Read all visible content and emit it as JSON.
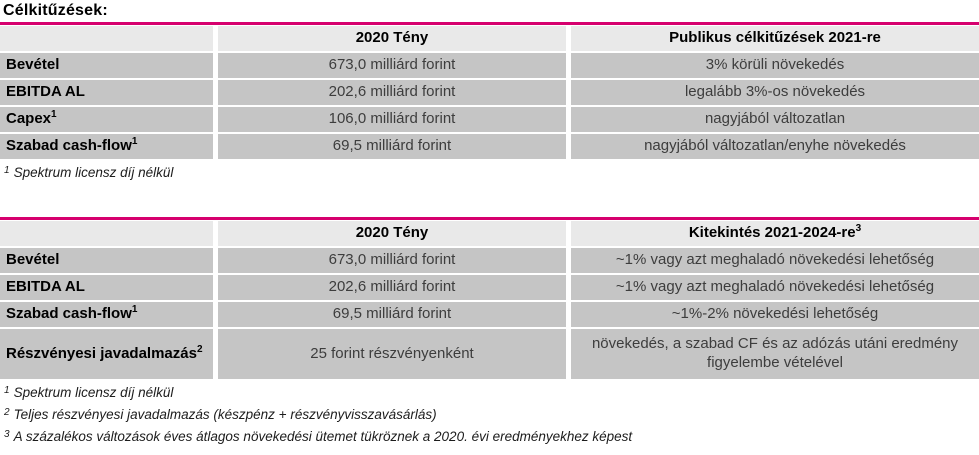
{
  "page": {
    "title": "Célkitűzések:"
  },
  "colors": {
    "accent": "#d6006e",
    "header_bg": "#e9e9e9",
    "row_bg": "#c5c5c5",
    "value_text": "#3d3d3d"
  },
  "table1": {
    "columns": {
      "label": "",
      "fact": "2020 Tény",
      "outlook": "Publikus célkitűzések 2021-re",
      "outlook_sup": ""
    },
    "rows": [
      {
        "label": "Bevétel",
        "sup": "",
        "fact": "673,0 milliárd forint",
        "outlook": "3% körüli növekedés"
      },
      {
        "label": "EBITDA AL",
        "sup": "",
        "fact": "202,6 milliárd forint",
        "outlook": "legalább 3%-os növekedés"
      },
      {
        "label": "Capex",
        "sup": "1",
        "fact": "106,0 milliárd forint",
        "outlook": "nagyjából változatlan"
      },
      {
        "label": "Szabad cash-flow",
        "sup": "1",
        "fact": "69,5 milliárd forint",
        "outlook": "nagyjából változatlan/enyhe növekedés"
      }
    ],
    "footnotes": [
      {
        "marker": "1",
        "text": "Spektrum licensz díj nélkül"
      }
    ]
  },
  "table2": {
    "columns": {
      "label": "",
      "fact": "2020 Tény",
      "outlook": "Kitekintés 2021-2024-re",
      "outlook_sup": "3"
    },
    "rows": [
      {
        "label": "Bevétel",
        "sup": "",
        "fact": "673,0 milliárd forint",
        "outlook": "~1% vagy azt meghaladó növekedési lehetőség"
      },
      {
        "label": "EBITDA AL",
        "sup": "",
        "fact": "202,6 milliárd forint",
        "outlook": "~1% vagy azt meghaladó növekedési lehetőség"
      },
      {
        "label": "Szabad cash-flow",
        "sup": "1",
        "fact": "69,5 milliárd forint",
        "outlook": "~1%-2% növekedési lehetőség"
      },
      {
        "label": "Részvényesi javadalmazás",
        "sup": "2",
        "fact": "25 forint részvényenként",
        "outlook": "növekedés, a szabad CF és az adózás utáni eredmény figyelembe vételével"
      }
    ],
    "footnotes": [
      {
        "marker": "1",
        "text": "Spektrum licensz díj nélkül"
      },
      {
        "marker": "2",
        "text": "Teljes részvényesi javadalmazás (készpénz + részvényvisszavásárlás)"
      },
      {
        "marker": "3",
        "text": "A százalékos változások éves átlagos növekedési ütemet tükröznek a 2020. évi eredményekhez képest"
      }
    ]
  }
}
